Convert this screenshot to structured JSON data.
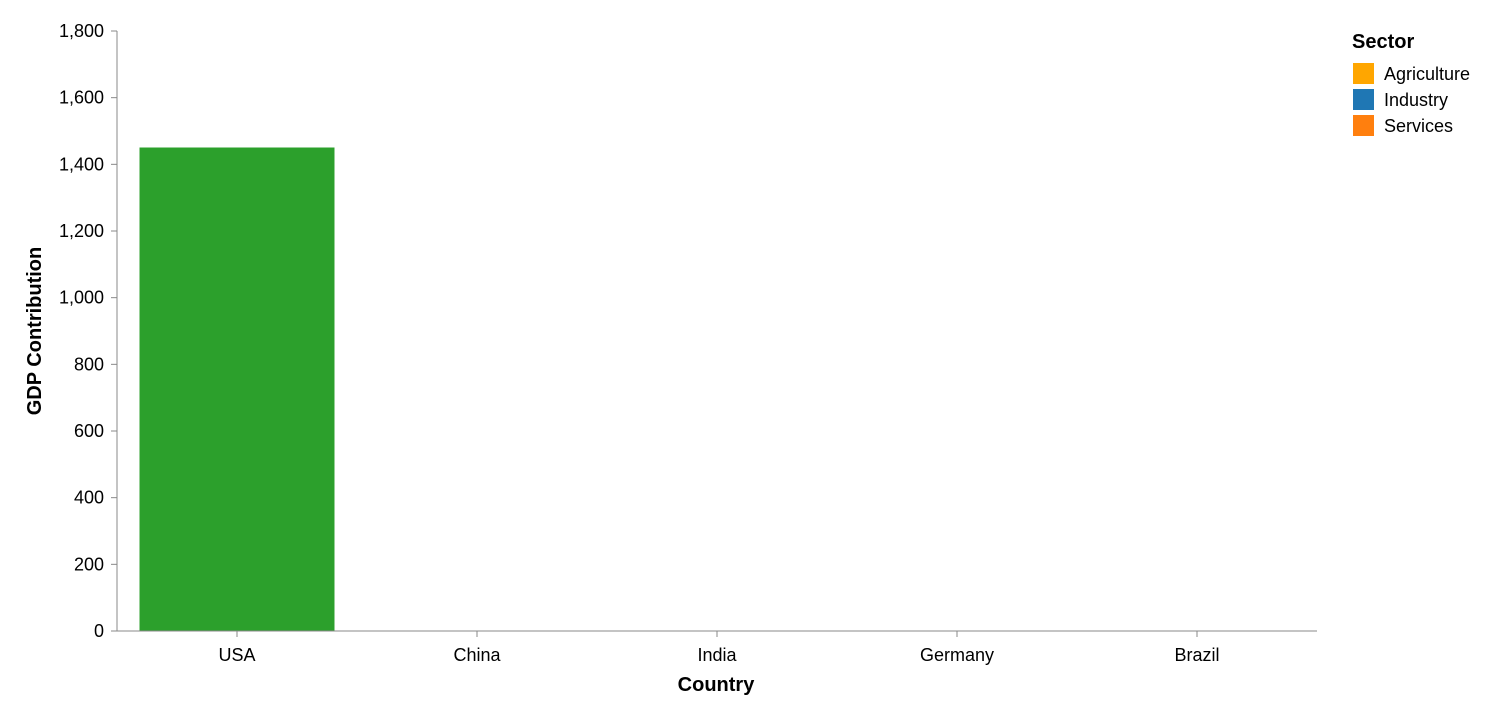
{
  "chart_data": {
    "type": "bar",
    "categories": [
      "USA",
      "China",
      "India",
      "Germany",
      "Brazil"
    ],
    "values": [
      1452,
      null,
      null,
      null,
      null
    ],
    "bar_color": "#2ca02c",
    "xlabel": "Country",
    "ylabel": "GDP Contribution",
    "ylim": [
      0,
      1800
    ],
    "yticks": [
      0,
      200,
      400,
      600,
      800,
      1000,
      1200,
      1400,
      1600,
      1800
    ],
    "ytick_labels": [
      "0",
      "200",
      "400",
      "600",
      "800",
      "1,000",
      "1,200",
      "1,400",
      "1,600",
      "1,800"
    ],
    "grid": false,
    "legend": {
      "title": "Sector",
      "position": "top-right",
      "items": [
        {
          "label": "Agriculture",
          "color": "#ffa600"
        },
        {
          "label": "Industry",
          "color": "#1f77b4"
        },
        {
          "label": "Services",
          "color": "#ff7f0e"
        }
      ]
    }
  }
}
